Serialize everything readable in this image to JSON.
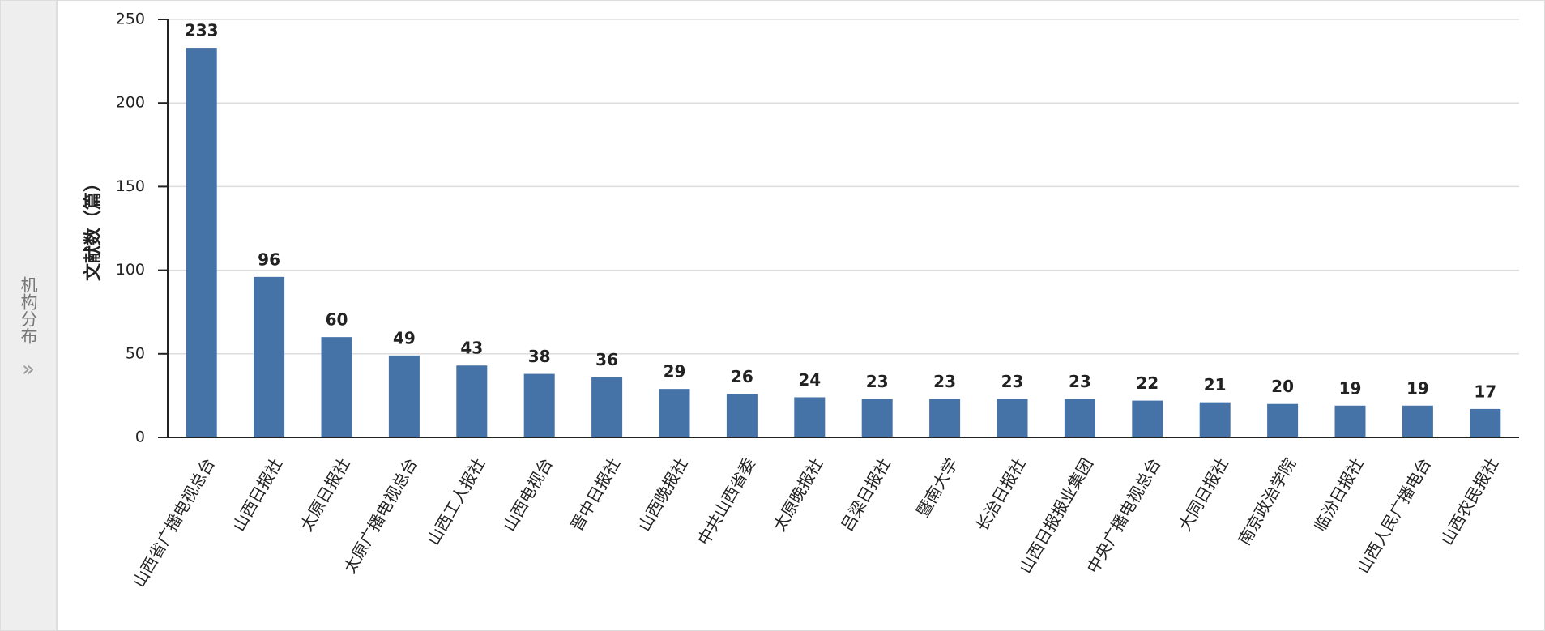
{
  "sidebar": {
    "label": "机构分布",
    "icon": "»"
  },
  "chart_data": {
    "type": "bar",
    "y_label": "文献数（篇）",
    "categories": [
      "山西省广播电视总台",
      "山西日报社",
      "太原日报社",
      "太原广播电视总台",
      "山西工人报社",
      "山西电视台",
      "晋中日报社",
      "山西晚报社",
      "中共山西省委",
      "太原晚报社",
      "吕梁日报社",
      "暨南大学",
      "长治日报社",
      "山西日报报业集团",
      "中央广播电视总台",
      "大同日报社",
      "南京政治学院",
      "临汾日报社",
      "山西人民广播电台",
      "山西农民报社"
    ],
    "values": [
      233,
      96,
      60,
      49,
      43,
      38,
      36,
      29,
      26,
      24,
      23,
      23,
      23,
      23,
      22,
      21,
      20,
      19,
      19,
      17
    ],
    "color": "#4572a7",
    "ylim": [
      0,
      250
    ],
    "yticks": [
      0,
      50,
      100,
      150,
      200,
      250
    ],
    "grid": true
  }
}
